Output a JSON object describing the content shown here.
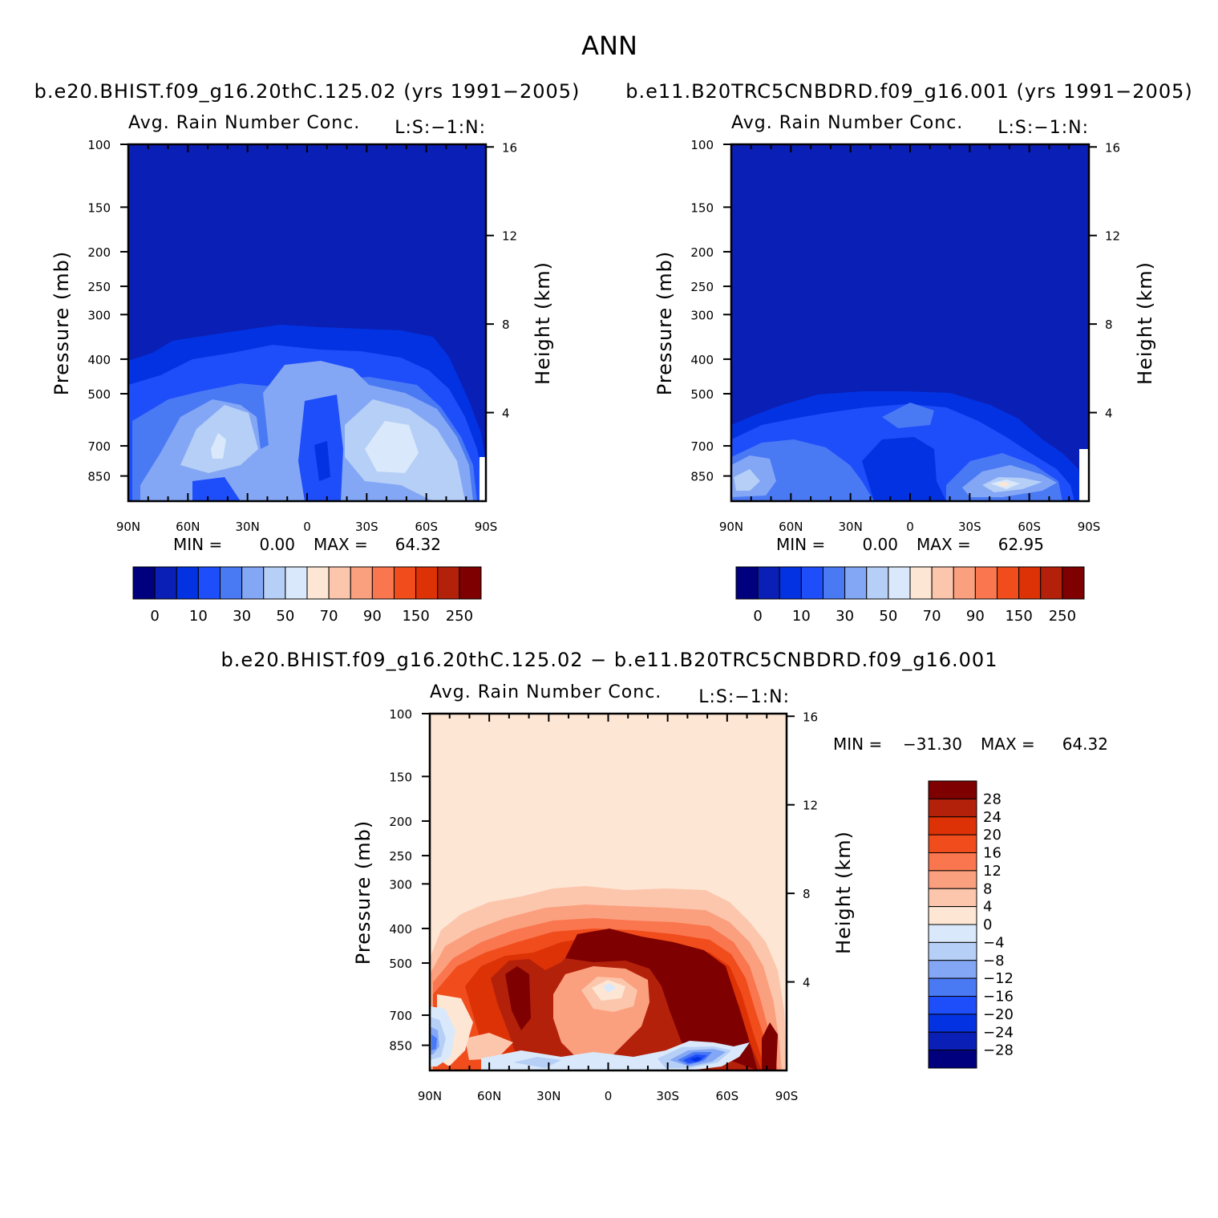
{
  "figure": {
    "title": "ANN"
  },
  "chart_data": [
    {
      "type": "heatmap",
      "id": "panel-1",
      "case_title": "b.e20.BHIST.f09_g16.20thC.125.02 (yrs 1991−2005)",
      "title": "Avg. Rain Number Conc.",
      "subtitle": "L:S:−1:N:",
      "ylabel": "Pressure (mb)",
      "ylabel_right": "Height (km)",
      "x_ticks": [
        "90N",
        "60N",
        "30N",
        "0",
        "30S",
        "60S",
        "90S"
      ],
      "y_ticks": [
        "100",
        "150",
        "200",
        "250",
        "300",
        "400",
        "500",
        "700",
        "850"
      ],
      "y_ticks_right": [
        "16",
        "12",
        "8",
        "4"
      ],
      "min_label": "MIN =",
      "min_value": "0.00",
      "max_label": "MAX =",
      "max_value": "64.32",
      "min": 0.0,
      "max": 64.32,
      "colorbar_labels": [
        "0",
        "10",
        "30",
        "50",
        "70",
        "90",
        "150",
        "250"
      ],
      "colors": [
        "#00007f",
        "#0a1fb5",
        "#0332e2",
        "#1e4dfa",
        "#4a79f4",
        "#84a7f5",
        "#b6cff7",
        "#d9e9fb",
        "#fde6d4",
        "#fcc6ad",
        "#fba07f",
        "#f9764f",
        "#f14c1c",
        "#dd3106",
        "#b3210b",
        "#7f0000"
      ]
    },
    {
      "type": "heatmap",
      "id": "panel-2",
      "case_title": "b.e11.B20TRC5CNBDRD.f09_g16.001 (yrs 1991−2005)",
      "title": "Avg. Rain Number Conc.",
      "subtitle": "L:S:−1:N:",
      "ylabel": "Pressure (mb)",
      "ylabel_right": "Height (km)",
      "x_ticks": [
        "90N",
        "60N",
        "30N",
        "0",
        "30S",
        "60S",
        "90S"
      ],
      "y_ticks": [
        "100",
        "150",
        "200",
        "250",
        "300",
        "400",
        "500",
        "700",
        "850"
      ],
      "y_ticks_right": [
        "16",
        "12",
        "8",
        "4"
      ],
      "min_label": "MIN =",
      "min_value": "0.00",
      "max_label": "MAX =",
      "max_value": "62.95",
      "min": 0.0,
      "max": 62.95,
      "colorbar_labels": [
        "0",
        "10",
        "30",
        "50",
        "70",
        "90",
        "150",
        "250"
      ],
      "colors": [
        "#00007f",
        "#0a1fb5",
        "#0332e2",
        "#1e4dfa",
        "#4a79f4",
        "#84a7f5",
        "#b6cff7",
        "#d9e9fb",
        "#fde6d4",
        "#fcc6ad",
        "#fba07f",
        "#f9764f",
        "#f14c1c",
        "#dd3106",
        "#b3210b",
        "#7f0000"
      ]
    },
    {
      "type": "heatmap",
      "id": "panel-diff",
      "case_title": "b.e20.BHIST.f09_g16.20thC.125.02 − b.e11.B20TRC5CNBDRD.f09_g16.001",
      "title": "Avg. Rain Number Conc.",
      "subtitle": "L:S:−1:N:",
      "ylabel": "Pressure (mb)",
      "ylabel_right": "Height (km)",
      "x_ticks": [
        "90N",
        "60N",
        "30N",
        "0",
        "30S",
        "60S",
        "90S"
      ],
      "y_ticks": [
        "100",
        "150",
        "200",
        "250",
        "300",
        "400",
        "500",
        "700",
        "850"
      ],
      "y_ticks_right": [
        "16",
        "12",
        "8",
        "4"
      ],
      "min_label": "MIN =",
      "min_value": "−31.30",
      "max_label": "MAX =",
      "max_value": "64.32",
      "min": -31.3,
      "max": 64.32,
      "colorbar_labels": [
        "28",
        "24",
        "20",
        "16",
        "12",
        "8",
        "4",
        "0",
        "−4",
        "−8",
        "−12",
        "−16",
        "−20",
        "−24",
        "−28"
      ],
      "colors": [
        "#7f0000",
        "#b3210b",
        "#dd3106",
        "#f14c1c",
        "#f9764f",
        "#fba07f",
        "#fcc6ad",
        "#fde6d4",
        "#d9e9fb",
        "#b6cff7",
        "#84a7f5",
        "#4a79f4",
        "#1e4dfa",
        "#0332e2",
        "#0a1fb5",
        "#00007f"
      ]
    }
  ]
}
